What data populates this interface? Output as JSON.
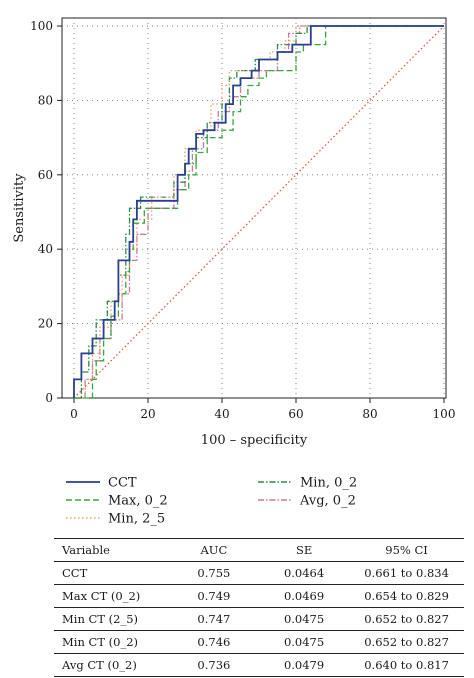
{
  "chart_data": {
    "type": "line",
    "xlabel": "100 – specificity",
    "ylabel": "Sensitivity",
    "xlim": [
      0,
      100
    ],
    "ylim": [
      0,
      100
    ],
    "xticks": [
      0,
      20,
      40,
      60,
      80,
      100
    ],
    "yticks": [
      0,
      20,
      40,
      60,
      80,
      100
    ],
    "grid": true,
    "legend_position": "bottom",
    "series": [
      {
        "name": "CCT",
        "color": "#2a3f8f",
        "style": "solid",
        "points": [
          [
            0,
            0
          ],
          [
            0,
            5
          ],
          [
            2,
            5
          ],
          [
            2,
            12
          ],
          [
            5,
            12
          ],
          [
            5,
            16
          ],
          [
            8,
            16
          ],
          [
            8,
            21
          ],
          [
            11,
            21
          ],
          [
            11,
            26
          ],
          [
            12,
            26
          ],
          [
            12,
            37
          ],
          [
            15,
            37
          ],
          [
            15,
            42
          ],
          [
            16,
            42
          ],
          [
            16,
            48
          ],
          [
            17,
            48
          ],
          [
            17,
            53
          ],
          [
            26,
            53
          ],
          [
            28,
            53
          ],
          [
            28,
            60
          ],
          [
            30,
            60
          ],
          [
            30,
            63
          ],
          [
            31,
            63
          ],
          [
            31,
            67
          ],
          [
            33,
            67
          ],
          [
            33,
            71
          ],
          [
            35,
            71
          ],
          [
            35,
            72
          ],
          [
            38,
            72
          ],
          [
            38,
            74
          ],
          [
            41,
            74
          ],
          [
            41,
            79
          ],
          [
            43,
            79
          ],
          [
            43,
            84
          ],
          [
            45,
            84
          ],
          [
            45,
            86
          ],
          [
            48,
            86
          ],
          [
            48,
            88
          ],
          [
            50,
            88
          ],
          [
            50,
            91
          ],
          [
            55,
            91
          ],
          [
            55,
            93
          ],
          [
            59,
            93
          ],
          [
            59,
            95
          ],
          [
            64,
            95
          ],
          [
            64,
            100
          ],
          [
            100,
            100
          ]
        ]
      },
      {
        "name": "Max, 0_2",
        "color": "#3aa53a",
        "style": "dashed",
        "points": [
          [
            0,
            0
          ],
          [
            5,
            0
          ],
          [
            5,
            5
          ],
          [
            6,
            5
          ],
          [
            6,
            10
          ],
          [
            8,
            10
          ],
          [
            8,
            16
          ],
          [
            10,
            16
          ],
          [
            10,
            22
          ],
          [
            12,
            22
          ],
          [
            12,
            28
          ],
          [
            14,
            28
          ],
          [
            14,
            34
          ],
          [
            15,
            34
          ],
          [
            15,
            40
          ],
          [
            16,
            40
          ],
          [
            16,
            47
          ],
          [
            19,
            47
          ],
          [
            19,
            51
          ],
          [
            25,
            51
          ],
          [
            28,
            51
          ],
          [
            28,
            56
          ],
          [
            31,
            56
          ],
          [
            31,
            60
          ],
          [
            33,
            60
          ],
          [
            33,
            66
          ],
          [
            36,
            66
          ],
          [
            36,
            70
          ],
          [
            40,
            70
          ],
          [
            40,
            72
          ],
          [
            43,
            72
          ],
          [
            43,
            77
          ],
          [
            45,
            77
          ],
          [
            45,
            81
          ],
          [
            47,
            81
          ],
          [
            47,
            84
          ],
          [
            50,
            84
          ],
          [
            50,
            86
          ],
          [
            52,
            86
          ],
          [
            52,
            88
          ],
          [
            60,
            88
          ],
          [
            60,
            93
          ],
          [
            62,
            93
          ],
          [
            62,
            95
          ],
          [
            68,
            95
          ],
          [
            68,
            100
          ],
          [
            100,
            100
          ]
        ]
      },
      {
        "name": "Min, 2_5",
        "color": "#e8a16a",
        "style": "dotted",
        "points": [
          [
            0,
            0
          ],
          [
            3,
            0
          ],
          [
            3,
            5
          ],
          [
            5,
            5
          ],
          [
            5,
            12
          ],
          [
            7,
            12
          ],
          [
            7,
            19
          ],
          [
            10,
            19
          ],
          [
            10,
            26
          ],
          [
            13,
            26
          ],
          [
            13,
            33
          ],
          [
            15,
            33
          ],
          [
            15,
            40
          ],
          [
            17,
            40
          ],
          [
            17,
            48
          ],
          [
            21,
            48
          ],
          [
            21,
            54
          ],
          [
            27,
            54
          ],
          [
            27,
            60
          ],
          [
            30,
            60
          ],
          [
            30,
            67
          ],
          [
            33,
            67
          ],
          [
            33,
            72
          ],
          [
            37,
            72
          ],
          [
            37,
            79
          ],
          [
            40,
            79
          ],
          [
            40,
            84
          ],
          [
            42,
            84
          ],
          [
            42,
            88
          ],
          [
            50,
            88
          ],
          [
            50,
            91
          ],
          [
            53,
            91
          ],
          [
            53,
            93
          ],
          [
            57,
            93
          ],
          [
            57,
            96
          ],
          [
            60,
            96
          ],
          [
            60,
            100
          ],
          [
            100,
            100
          ]
        ]
      },
      {
        "name": "Min, 0_2",
        "color": "#2e8a4a",
        "style": "dashdot",
        "points": [
          [
            0,
            0
          ],
          [
            2,
            0
          ],
          [
            2,
            7
          ],
          [
            4,
            7
          ],
          [
            4,
            14
          ],
          [
            6,
            14
          ],
          [
            6,
            21
          ],
          [
            9,
            21
          ],
          [
            9,
            26
          ],
          [
            12,
            26
          ],
          [
            12,
            33
          ],
          [
            14,
            33
          ],
          [
            14,
            44
          ],
          [
            15,
            44
          ],
          [
            15,
            51
          ],
          [
            18,
            51
          ],
          [
            18,
            54
          ],
          [
            24,
            54
          ],
          [
            27,
            54
          ],
          [
            27,
            58
          ],
          [
            30,
            58
          ],
          [
            30,
            63
          ],
          [
            33,
            63
          ],
          [
            33,
            70
          ],
          [
            36,
            70
          ],
          [
            36,
            74
          ],
          [
            40,
            74
          ],
          [
            40,
            79
          ],
          [
            42,
            79
          ],
          [
            42,
            86
          ],
          [
            44,
            86
          ],
          [
            44,
            88
          ],
          [
            49,
            88
          ],
          [
            49,
            91
          ],
          [
            55,
            91
          ],
          [
            55,
            95
          ],
          [
            60,
            95
          ],
          [
            60,
            98
          ],
          [
            63,
            98
          ],
          [
            63,
            100
          ],
          [
            100,
            100
          ]
        ]
      },
      {
        "name": "Avg, 0_2",
        "color": "#c77a9a",
        "style": "dashdot",
        "points": [
          [
            0,
            0
          ],
          [
            3,
            0
          ],
          [
            3,
            5
          ],
          [
            5,
            5
          ],
          [
            5,
            10
          ],
          [
            7,
            10
          ],
          [
            7,
            16
          ],
          [
            10,
            16
          ],
          [
            10,
            21
          ],
          [
            13,
            21
          ],
          [
            13,
            28
          ],
          [
            15,
            28
          ],
          [
            15,
            37
          ],
          [
            17,
            37
          ],
          [
            17,
            44
          ],
          [
            20,
            44
          ],
          [
            20,
            51
          ],
          [
            24,
            51
          ],
          [
            27,
            51
          ],
          [
            27,
            56
          ],
          [
            30,
            56
          ],
          [
            30,
            61
          ],
          [
            32,
            61
          ],
          [
            32,
            67
          ],
          [
            35,
            67
          ],
          [
            35,
            72
          ],
          [
            39,
            72
          ],
          [
            39,
            77
          ],
          [
            42,
            77
          ],
          [
            42,
            81
          ],
          [
            45,
            81
          ],
          [
            45,
            86
          ],
          [
            50,
            86
          ],
          [
            50,
            88
          ],
          [
            55,
            88
          ],
          [
            55,
            93
          ],
          [
            58,
            93
          ],
          [
            58,
            98
          ],
          [
            61,
            98
          ],
          [
            61,
            100
          ],
          [
            100,
            100
          ]
        ]
      },
      {
        "name": "",
        "color": "#d9603a",
        "style": "dotted",
        "points": [
          [
            0,
            0
          ],
          [
            100,
            100
          ]
        ]
      }
    ]
  },
  "table": {
    "headers": [
      "Variable",
      "AUC",
      "SE",
      "95% CI"
    ],
    "rows": [
      [
        "CCT",
        "0.755",
        "0.0464",
        "0.661 to 0.834"
      ],
      [
        "Max CT (0_2)",
        "0.749",
        "0.0469",
        "0.654 to 0.829"
      ],
      [
        "Min CT (2_5)",
        "0.747",
        "0.0475",
        "0.652 to 0.827"
      ],
      [
        "Min CT (0_2)",
        "0.746",
        "0.0475",
        "0.652 to 0.827"
      ],
      [
        "Avg CT (0_2)",
        "0.736",
        "0.0479",
        "0.640 to 0.817"
      ]
    ]
  }
}
